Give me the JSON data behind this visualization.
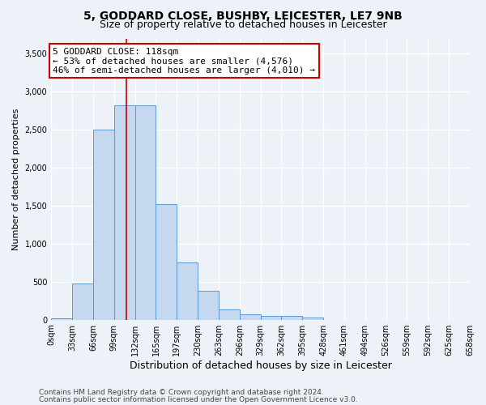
{
  "title1": "5, GODDARD CLOSE, BUSHBY, LEICESTER, LE7 9NB",
  "title2": "Size of property relative to detached houses in Leicester",
  "xlabel": "Distribution of detached houses by size in Leicester",
  "ylabel": "Number of detached properties",
  "bar_values": [
    20,
    480,
    2500,
    2820,
    2820,
    1520,
    750,
    380,
    140,
    70,
    55,
    55,
    30,
    0,
    0,
    0,
    0,
    0,
    0,
    0
  ],
  "bin_labels": [
    "0sqm",
    "33sqm",
    "66sqm",
    "99sqm",
    "132sqm",
    "165sqm",
    "197sqm",
    "230sqm",
    "263sqm",
    "296sqm",
    "329sqm",
    "362sqm",
    "395sqm",
    "428sqm",
    "461sqm",
    "494sqm",
    "526sqm",
    "559sqm",
    "592sqm",
    "625sqm",
    "658sqm"
  ],
  "bar_color": "#c5d8ef",
  "bar_edge_color": "#5b9bd5",
  "vline_x_bin": 3.576,
  "vline_color": "#cc0000",
  "ylim": [
    0,
    3700
  ],
  "yticks": [
    0,
    500,
    1000,
    1500,
    2000,
    2500,
    3000,
    3500
  ],
  "annotation_box_text": "5 GODDARD CLOSE: 118sqm\n← 53% of detached houses are smaller (4,576)\n46% of semi-detached houses are larger (4,010) →",
  "annotation_box_color": "#ffffff",
  "annotation_box_edge_color": "#cc0000",
  "footnote1": "Contains HM Land Registry data © Crown copyright and database right 2024.",
  "footnote2": "Contains public sector information licensed under the Open Government Licence v3.0.",
  "bg_color": "#edf2f8",
  "plot_bg_color": "#edf2f8",
  "grid_color": "#ffffff",
  "title1_fontsize": 10,
  "title2_fontsize": 9,
  "xlabel_fontsize": 9,
  "ylabel_fontsize": 8,
  "tick_fontsize": 7,
  "footnote_fontsize": 6.5,
  "annotation_fontsize": 8
}
